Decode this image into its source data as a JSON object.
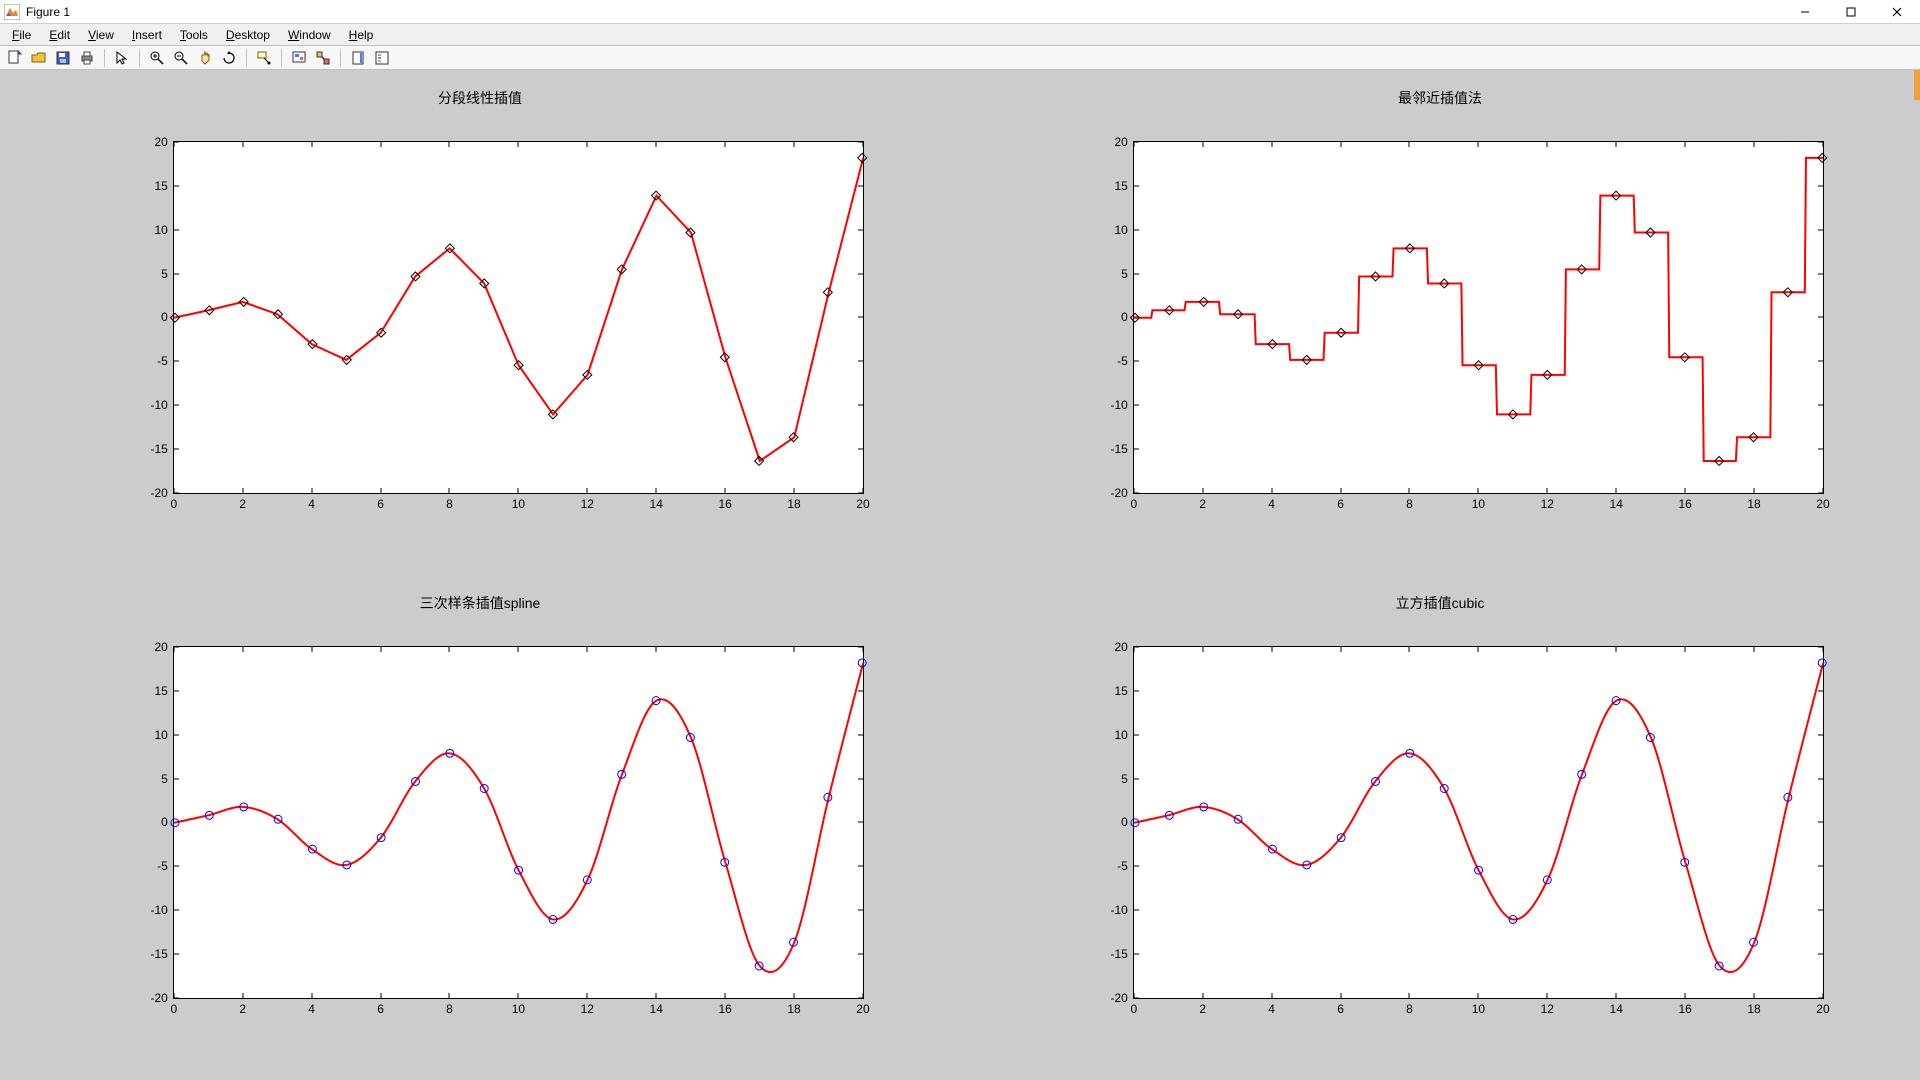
{
  "window": {
    "title": "Figure 1"
  },
  "menu": {
    "items": [
      "File",
      "Edit",
      "View",
      "Insert",
      "Tools",
      "Desktop",
      "Window",
      "Help"
    ]
  },
  "toolbar": {
    "buttons": [
      "new-figure-icon",
      "open-icon",
      "save-icon",
      "print-icon",
      "SEP",
      "pointer-icon",
      "SEP",
      "zoom-in-icon",
      "zoom-out-icon",
      "pan-icon",
      "rotate-icon",
      "SEP",
      "data-cursor-icon",
      "SEP",
      "brush-icon",
      "link-icon",
      "SEP",
      "colorbar-icon",
      "legend-icon"
    ]
  },
  "figure": {
    "bg_color": "#cccccc",
    "axes_bg": "#ffffff",
    "xlim": [
      0,
      20
    ],
    "ylim": [
      -20,
      20
    ],
    "xticks": [
      0,
      2,
      4,
      6,
      8,
      10,
      12,
      14,
      16,
      18,
      20
    ],
    "yticks": [
      -20,
      -15,
      -10,
      -5,
      0,
      5,
      10,
      15,
      20
    ],
    "data_x": [
      0,
      1,
      2,
      3,
      4,
      5,
      6,
      7,
      8,
      9,
      10,
      11,
      12,
      13,
      14,
      15,
      16,
      17,
      18,
      19,
      20
    ],
    "data_y": [
      0,
      0.85,
      1.8,
      0.4,
      -3.0,
      -4.8,
      -1.7,
      4.7,
      7.9,
      3.9,
      -5.4,
      -11,
      -6.5,
      5.5,
      13.9,
      9.7,
      -4.5,
      -16.3,
      -13.6,
      2.9,
      18.2
    ],
    "line_color": "#ff0000",
    "marker_diamond_stroke": "#000000",
    "marker_circle_stroke": "#0000ff",
    "subplots": [
      {
        "title": "分段线性插值",
        "type": "linear",
        "marker": "diamond"
      },
      {
        "title": "最邻近插值法",
        "type": "nearest",
        "marker": "diamond"
      },
      {
        "title": "三次样条插值spline",
        "type": "spline",
        "marker": "circle"
      },
      {
        "title": "立方插值cubic",
        "type": "spline",
        "marker": "circle"
      }
    ]
  }
}
